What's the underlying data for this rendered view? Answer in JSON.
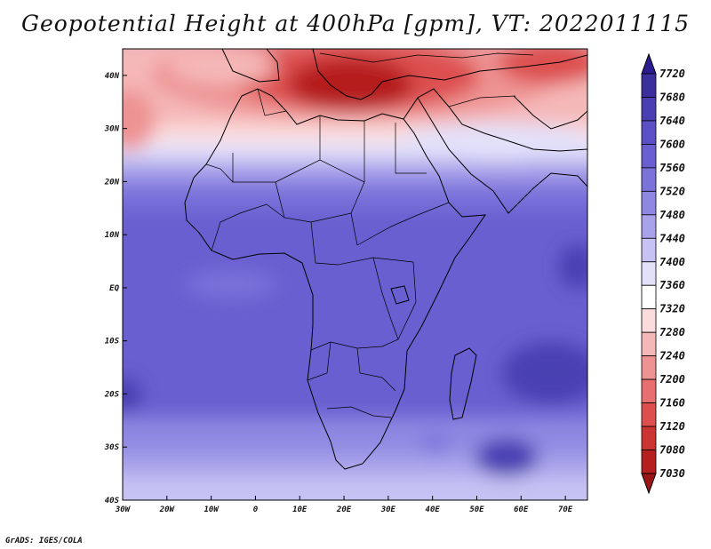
{
  "title": "Geopotential Height at 400hPa [gpm], VT: 2022011115",
  "credit": "GrADS: IGES/COLA",
  "map": {
    "lon_range": [
      -30,
      75
    ],
    "lat_range": [
      -40,
      45
    ],
    "lon_ticks": [
      {
        "value": -30,
        "label": "30W"
      },
      {
        "value": -20,
        "label": "20W"
      },
      {
        "value": -10,
        "label": "10W"
      },
      {
        "value": 0,
        "label": "0"
      },
      {
        "value": 10,
        "label": "10E"
      },
      {
        "value": 20,
        "label": "20E"
      },
      {
        "value": 30,
        "label": "30E"
      },
      {
        "value": 40,
        "label": "40E"
      },
      {
        "value": 50,
        "label": "50E"
      },
      {
        "value": 60,
        "label": "60E"
      },
      {
        "value": 70,
        "label": "70E"
      }
    ],
    "lat_ticks": [
      {
        "value": 40,
        "label": "40N"
      },
      {
        "value": 30,
        "label": "30N"
      },
      {
        "value": 20,
        "label": "20N"
      },
      {
        "value": 10,
        "label": "10N"
      },
      {
        "value": 0,
        "label": "EQ"
      },
      {
        "value": -10,
        "label": "10S"
      },
      {
        "value": -20,
        "label": "20S"
      },
      {
        "value": -30,
        "label": "30S"
      },
      {
        "value": -40,
        "label": "40S"
      }
    ]
  },
  "colorbar": {
    "levels": [
      "7720",
      "7680",
      "7640",
      "7600",
      "7560",
      "7520",
      "7480",
      "7440",
      "7400",
      "7360",
      "7320",
      "7280",
      "7240",
      "7200",
      "7160",
      "7120",
      "7080",
      "7030"
    ],
    "colors": [
      "#2a1b8f",
      "#3b2f9e",
      "#4a3fb2",
      "#5a4fc4",
      "#6a5fd0",
      "#7b72da",
      "#8f88e2",
      "#a7a2ea",
      "#c6c2f3",
      "#e3e1fa",
      "#ffffff",
      "#fbdcdc",
      "#f5b8b8",
      "#ee9393",
      "#e76f6f",
      "#dd4f4f",
      "#cc3333",
      "#b51f1f",
      "#9a1515"
    ]
  }
}
